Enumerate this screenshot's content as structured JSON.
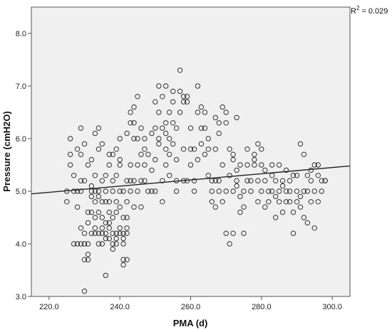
{
  "chart_data": {
    "type": "scatter",
    "xlabel": "PMA (d)",
    "ylabel": "Pressure (cmH2O)",
    "xlim": [
      215,
      305
    ],
    "ylim": [
      3.0,
      8.5
    ],
    "x_ticks": [
      "220.0",
      "240.0",
      "260.0",
      "280.0",
      "300.0"
    ],
    "y_ticks": [
      "3.0",
      "4.0",
      "5.0",
      "6.0",
      "7.0",
      "8.0"
    ],
    "annotation": {
      "r2_symbol": "R",
      "r2_sup": "2",
      "r2_value": "= 0.029"
    },
    "fit_line": {
      "x": [
        215,
        305
      ],
      "y": [
        4.95,
        5.48
      ]
    },
    "grid": false,
    "background_color": "#f0f0f0",
    "point_color": "#333333",
    "line_color": "#222222",
    "points": [
      [
        225,
        4.8
      ],
      [
        225,
        5.0
      ],
      [
        226,
        5.7
      ],
      [
        226,
        6.0
      ],
      [
        226,
        5.5
      ],
      [
        227,
        5.0
      ],
      [
        227,
        4.0
      ],
      [
        227,
        5.3
      ],
      [
        228,
        4.7
      ],
      [
        228,
        5.8
      ],
      [
        228,
        4.0
      ],
      [
        228,
        5.0
      ],
      [
        229,
        6.2
      ],
      [
        229,
        5.2
      ],
      [
        229,
        4.3
      ],
      [
        229,
        4.0
      ],
      [
        229,
        5.7
      ],
      [
        229,
        5.0
      ],
      [
        230,
        3.1
      ],
      [
        230,
        4.2
      ],
      [
        230,
        3.7
      ],
      [
        230,
        5.9
      ],
      [
        230,
        5.2
      ],
      [
        230,
        4.0
      ],
      [
        231,
        4.4
      ],
      [
        231,
        4.0
      ],
      [
        231,
        4.6
      ],
      [
        231,
        3.7
      ],
      [
        231,
        5.5
      ],
      [
        231,
        3.8
      ],
      [
        232,
        4.2
      ],
      [
        232,
        5.1
      ],
      [
        232,
        4.6
      ],
      [
        232,
        5.0
      ],
      [
        232,
        4.9
      ],
      [
        232,
        5.6
      ],
      [
        233,
        4.8
      ],
      [
        233,
        5.3
      ],
      [
        233,
        4.5
      ],
      [
        233,
        4.2
      ],
      [
        233,
        6.1
      ],
      [
        233,
        5.0
      ],
      [
        234,
        4.9
      ],
      [
        234,
        5.8
      ],
      [
        234,
        6.2
      ],
      [
        234,
        5.0
      ],
      [
        234,
        4.6
      ],
      [
        234,
        4.0
      ],
      [
        235,
        4.3
      ],
      [
        235,
        5.9
      ],
      [
        235,
        4.5
      ],
      [
        235,
        5.2
      ],
      [
        235,
        4.8
      ],
      [
        235,
        4.0
      ],
      [
        236,
        4.2
      ],
      [
        236,
        4.8
      ],
      [
        236,
        4.4
      ],
      [
        236,
        3.4
      ],
      [
        236,
        5.3
      ],
      [
        236,
        5.0
      ],
      [
        237,
        5.7
      ],
      [
        237,
        4.6
      ],
      [
        237,
        4.8
      ],
      [
        237,
        4.1
      ],
      [
        237,
        5.5
      ],
      [
        237,
        4.3
      ],
      [
        238,
        5.7
      ],
      [
        238,
        4.5
      ],
      [
        238,
        5.2
      ],
      [
        238,
        4.0
      ],
      [
        238,
        3.9
      ],
      [
        238,
        5.0
      ],
      [
        239,
        5.8
      ],
      [
        239,
        4.6
      ],
      [
        239,
        4.2
      ],
      [
        239,
        5.3
      ],
      [
        239,
        4.8
      ],
      [
        239,
        4.0
      ],
      [
        240,
        5.5
      ],
      [
        240,
        4.3
      ],
      [
        240,
        5.0
      ],
      [
        240,
        5.6
      ],
      [
        240,
        4.7
      ],
      [
        240,
        6.0
      ],
      [
        241,
        3.6
      ],
      [
        241,
        4.2
      ],
      [
        241,
        4.0
      ],
      [
        241,
        3.7
      ],
      [
        241,
        5.0
      ],
      [
        241,
        4.5
      ],
      [
        242,
        3.7
      ],
      [
        242,
        4.8
      ],
      [
        242,
        5.2
      ],
      [
        242,
        6.1
      ],
      [
        242,
        4.5
      ],
      [
        242,
        4.3
      ],
      [
        243,
        6.3
      ],
      [
        243,
        5.5
      ],
      [
        243,
        6.5
      ],
      [
        243,
        5.0
      ],
      [
        243,
        5.2
      ],
      [
        244,
        6.6
      ],
      [
        244,
        6.0
      ],
      [
        244,
        6.3
      ],
      [
        244,
        5.2
      ],
      [
        244,
        4.7
      ],
      [
        245,
        6.0
      ],
      [
        245,
        6.8
      ],
      [
        245,
        5.5
      ],
      [
        245,
        5.0
      ],
      [
        246,
        5.2
      ],
      [
        246,
        6.2
      ],
      [
        246,
        4.7
      ],
      [
        246,
        5.7
      ],
      [
        247,
        5.8
      ],
      [
        247,
        5.2
      ],
      [
        247,
        6.0
      ],
      [
        247,
        5.5
      ],
      [
        248,
        5.7
      ],
      [
        248,
        5.0
      ],
      [
        249,
        5.4
      ],
      [
        249,
        6.1
      ],
      [
        249,
        5.0
      ],
      [
        250,
        6.7
      ],
      [
        250,
        6.2
      ],
      [
        250,
        5.6
      ],
      [
        250,
        5.0
      ],
      [
        251,
        7.0
      ],
      [
        251,
        6.5
      ],
      [
        251,
        5.9
      ],
      [
        251,
        6.0
      ],
      [
        252,
        6.8
      ],
      [
        252,
        6.2
      ],
      [
        252,
        5.2
      ],
      [
        252,
        4.8
      ],
      [
        253,
        6.3
      ],
      [
        253,
        5.8
      ],
      [
        253,
        5.5
      ],
      [
        253,
        6.1
      ],
      [
        253,
        7.0
      ],
      [
        254,
        6.5
      ],
      [
        254,
        6.0
      ],
      [
        254,
        5.7
      ],
      [
        254,
        5.3
      ],
      [
        255,
        6.9
      ],
      [
        255,
        6.3
      ],
      [
        255,
        5.9
      ],
      [
        255,
        6.7
      ],
      [
        256,
        5.6
      ],
      [
        256,
        6.2
      ],
      [
        256,
        5.2
      ],
      [
        256,
        5.0
      ],
      [
        257,
        7.3
      ],
      [
        257,
        6.9
      ],
      [
        257,
        6.5
      ],
      [
        258,
        6.8
      ],
      [
        258,
        6.7
      ],
      [
        258,
        5.8
      ],
      [
        258,
        5.2
      ],
      [
        259,
        6.8
      ],
      [
        259,
        6.7
      ],
      [
        259,
        5.2
      ],
      [
        260,
        6.2
      ],
      [
        260,
        5.8
      ],
      [
        260,
        5.5
      ],
      [
        261,
        5.8
      ],
      [
        261,
        5.2
      ],
      [
        261,
        5.0
      ],
      [
        262,
        7.0
      ],
      [
        262,
        6.5
      ],
      [
        262,
        5.6
      ],
      [
        263,
        6.6
      ],
      [
        263,
        6.2
      ],
      [
        263,
        5.9
      ],
      [
        264,
        6.5
      ],
      [
        264,
        6.2
      ],
      [
        264,
        5.7
      ],
      [
        265,
        5.3
      ],
      [
        265,
        6.0
      ],
      [
        265,
        5.8
      ],
      [
        266,
        5.2
      ],
      [
        266,
        5.0
      ],
      [
        266,
        4.8
      ],
      [
        267,
        6.4
      ],
      [
        267,
        5.8
      ],
      [
        267,
        5.2
      ],
      [
        267,
        4.7
      ],
      [
        268,
        6.1
      ],
      [
        268,
        6.3
      ],
      [
        268,
        5.2
      ],
      [
        268,
        5.0
      ],
      [
        269,
        6.6
      ],
      [
        269,
        5.5
      ],
      [
        269,
        4.8
      ],
      [
        270,
        6.5
      ],
      [
        270,
        6.3
      ],
      [
        270,
        4.2
      ],
      [
        270,
        5.0
      ],
      [
        271,
        5.8
      ],
      [
        271,
        5.3
      ],
      [
        271,
        4.0
      ],
      [
        272,
        5.7
      ],
      [
        272,
        5.6
      ],
      [
        272,
        5.0
      ],
      [
        272,
        4.2
      ],
      [
        273,
        5.4
      ],
      [
        273,
        5.2
      ],
      [
        273,
        5.1
      ],
      [
        273,
        6.4
      ],
      [
        274,
        4.9
      ],
      [
        274,
        5.5
      ],
      [
        274,
        4.6
      ],
      [
        275,
        5.0
      ],
      [
        275,
        4.7
      ],
      [
        275,
        4.2
      ],
      [
        276,
        5.2
      ],
      [
        276,
        5.8
      ],
      [
        276,
        5.5
      ],
      [
        277,
        5.2
      ],
      [
        277,
        5.0
      ],
      [
        278,
        5.6
      ],
      [
        278,
        5.7
      ],
      [
        278,
        5.5
      ],
      [
        279,
        5.9
      ],
      [
        279,
        5.2
      ],
      [
        279,
        4.8
      ],
      [
        280,
        5.8
      ],
      [
        280,
        5.5
      ],
      [
        280,
        5.0
      ],
      [
        281,
        5.2
      ],
      [
        281,
        4.7
      ],
      [
        281,
        5.4
      ],
      [
        282,
        5.0
      ],
      [
        282,
        4.8
      ],
      [
        283,
        5.5
      ],
      [
        283,
        5.3
      ],
      [
        283,
        5.0
      ],
      [
        284,
        5.2
      ],
      [
        284,
        4.9
      ],
      [
        284,
        4.5
      ],
      [
        285,
        5.0
      ],
      [
        285,
        4.8
      ],
      [
        285,
        5.5
      ],
      [
        286,
        5.2
      ],
      [
        286,
        5.1
      ],
      [
        286,
        4.6
      ],
      [
        287,
        5.4
      ],
      [
        287,
        5.0
      ],
      [
        287,
        4.8
      ],
      [
        288,
        5.2
      ],
      [
        288,
        5.0
      ],
      [
        288,
        4.8
      ],
      [
        289,
        4.2
      ],
      [
        289,
        5.3
      ],
      [
        289,
        4.6
      ],
      [
        290,
        5.0
      ],
      [
        290,
        4.8
      ],
      [
        290,
        5.3
      ],
      [
        291,
        5.9
      ],
      [
        291,
        4.9
      ],
      [
        291,
        4.7
      ],
      [
        292,
        5.7
      ],
      [
        292,
        5.0
      ],
      [
        292,
        4.5
      ],
      [
        293,
        5.3
      ],
      [
        293,
        5.0
      ],
      [
        293,
        4.4
      ],
      [
        294,
        5.4
      ],
      [
        294,
        5.2
      ],
      [
        294,
        4.8
      ],
      [
        295,
        4.3
      ],
      [
        295,
        5.5
      ],
      [
        295,
        5.0
      ],
      [
        296,
        5.5
      ],
      [
        296,
        5.3
      ],
      [
        296,
        4.8
      ],
      [
        297,
        5.2
      ],
      [
        297,
        5.0
      ],
      [
        298,
        5.2
      ],
      [
        298,
        5.2
      ],
      [
        233,
        4.3
      ],
      [
        234,
        4.2
      ],
      [
        235,
        4.2
      ],
      [
        236,
        4.1
      ],
      [
        237,
        4.4
      ],
      [
        238,
        4.2
      ],
      [
        239,
        4.1
      ],
      [
        240,
        4.2
      ],
      [
        241,
        4.1
      ],
      [
        242,
        4.2
      ]
    ]
  }
}
